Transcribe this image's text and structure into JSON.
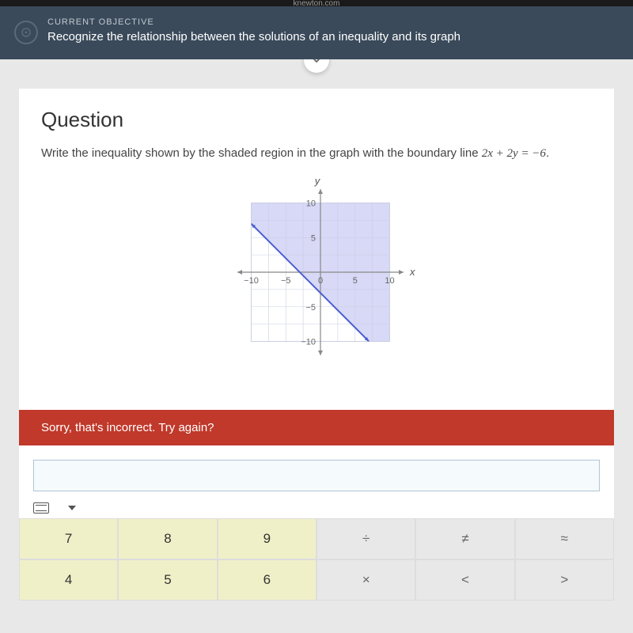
{
  "browser": {
    "domain": "knewton.com"
  },
  "header": {
    "label": "CURRENT OBJECTIVE",
    "text": "Recognize the relationship between the solutions of an inequality and its graph"
  },
  "question": {
    "title": "Question",
    "prompt_prefix": "Write the inequality shown by the shaded region in the graph with the boundary line ",
    "boundary_equation": "2x + 2y = −6",
    "prompt_suffix": "."
  },
  "graph": {
    "type": "inequality-region",
    "x_axis": {
      "label": "x",
      "min": -12,
      "max": 12,
      "ticks": [
        -10,
        -5,
        0,
        5,
        10
      ]
    },
    "y_axis": {
      "label": "y",
      "min": -12,
      "max": 12,
      "ticks": [
        -10,
        -5,
        5,
        10
      ]
    },
    "grid_step": 2.5,
    "boundary_line": {
      "points": [
        [
          -10,
          7
        ],
        [
          10,
          -13
        ]
      ],
      "color": "#4a5fd0",
      "width": 2
    },
    "shaded_region": {
      "side": "above",
      "fill": "#b8b8f0",
      "opacity": 0.55
    },
    "background": "#ffffff",
    "grid_color": "#c8d0e0",
    "axis_color": "#888",
    "tick_fontsize": 11,
    "label_fontsize": 13
  },
  "feedback": {
    "message": "Sorry, that's incorrect. Try again?"
  },
  "answer": {
    "value": ""
  },
  "keypad": {
    "rows": [
      [
        {
          "label": "7",
          "type": "num"
        },
        {
          "label": "8",
          "type": "num"
        },
        {
          "label": "9",
          "type": "num"
        },
        {
          "label": "÷",
          "type": "op"
        },
        {
          "label": "≠",
          "type": "op"
        },
        {
          "label": "≈",
          "type": "op"
        }
      ],
      [
        {
          "label": "4",
          "type": "num"
        },
        {
          "label": "5",
          "type": "num"
        },
        {
          "label": "6",
          "type": "num"
        },
        {
          "label": "×",
          "type": "op"
        },
        {
          "label": "<",
          "type": "op"
        },
        {
          "label": ">",
          "type": "op"
        }
      ]
    ]
  },
  "colors": {
    "header_bg": "#3a4a5a",
    "error_bg": "#c0392b",
    "key_num_bg": "#f0f0c8",
    "key_op_bg": "#e8e8e8"
  }
}
